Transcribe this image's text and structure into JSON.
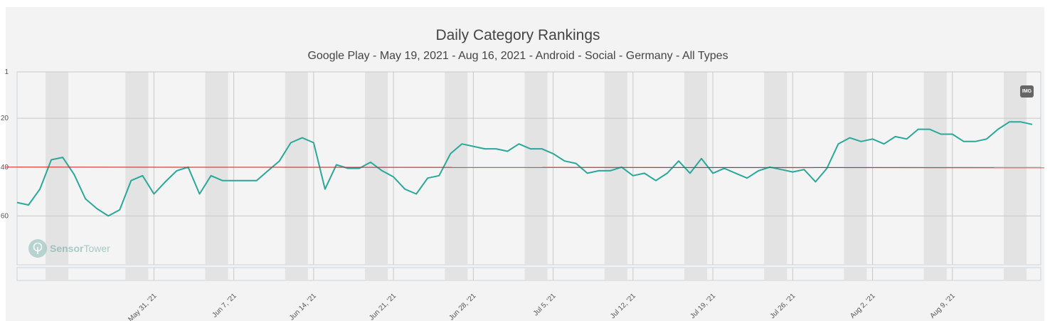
{
  "chart_data": {
    "type": "line",
    "title": "Daily Category Rankings",
    "subtitle": "Google Play - May 19, 2021 - Aug 16, 2021 - Android - Social - Germany - All Types",
    "xlabel": "",
    "ylabel": "",
    "x_start": "2021-05-19",
    "x_end": "2021-08-16",
    "x_ticks": [
      "May 31, '21",
      "Jun 7, '21",
      "Jun 14, '21",
      "Jun 21, '21",
      "Jun 28, '21",
      "Jul 5, '21",
      "Jul 12, '21",
      "Jul 19, '21",
      "Jul 26, '21",
      "Aug 2, '21",
      "Aug 9, '21"
    ],
    "y_ticks": [
      "1",
      "20",
      "40",
      "60"
    ],
    "y_reversed": true,
    "ylim": [
      1,
      80
    ],
    "grid": true,
    "weekend_bands": true,
    "series": [
      {
        "color": "#2aa89a",
        "values": [
          54.5,
          55.5,
          49,
          37,
          36,
          43,
          53,
          57,
          60,
          57.5,
          45.5,
          43.5,
          51,
          46,
          41.5,
          40,
          51,
          43.5,
          45.5,
          45.5,
          45.5,
          45.5,
          41.5,
          37.5,
          30,
          28,
          30,
          49,
          39,
          40.5,
          40.5,
          38,
          41.5,
          44,
          49,
          51,
          44.5,
          43.5,
          34.5,
          30.5,
          31.5,
          32.5,
          32.5,
          33.5,
          30.5,
          32.5,
          32.5,
          34.5,
          37.5,
          38.5,
          42.5,
          41.5,
          41.5,
          40,
          43.5,
          42.5,
          45.5,
          42.5,
          37.5,
          42.5,
          36.5,
          42.5,
          40.5,
          42.5,
          44.5,
          41.5,
          40,
          41,
          42,
          41,
          46,
          40.5,
          30.5,
          28,
          29.5,
          28.5,
          30.5,
          27.5,
          28.5,
          24.5,
          24.5,
          26.5,
          26.5,
          29.5,
          29.5,
          28.5,
          24.5,
          21.5,
          21.5,
          22.5
        ]
      }
    ],
    "reference_line": {
      "value": 40,
      "color": "#d81f1f"
    }
  },
  "toolbar": {
    "img_label": "IMG"
  },
  "watermark": {
    "part1": "Sensor",
    "part2": "Tower"
  }
}
